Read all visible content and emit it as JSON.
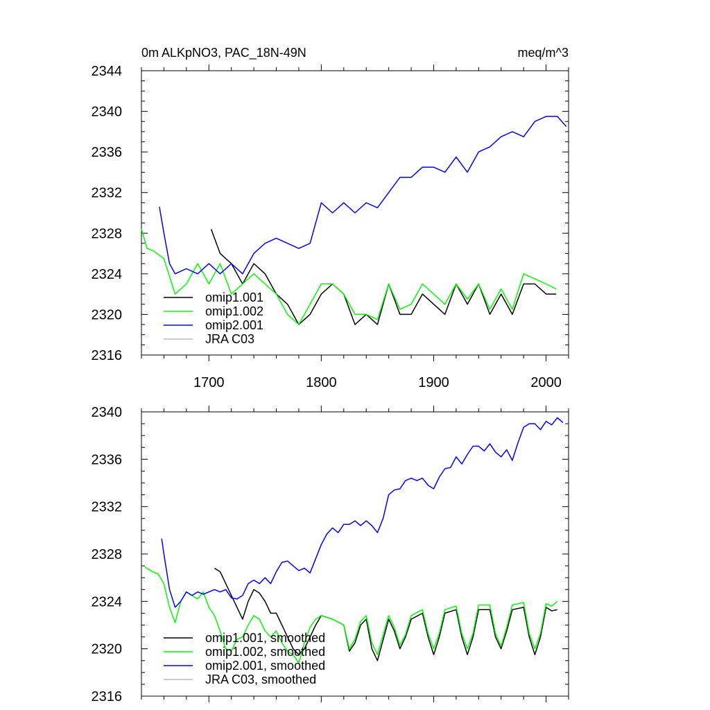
{
  "chart_data": [
    {
      "type": "line",
      "title": "0m ALKpNO3, PAC_18N-49N",
      "units": "meq/m^3",
      "xlim": [
        1640,
        2020
      ],
      "ylim": [
        2316,
        2344
      ],
      "yticks": [
        2316,
        2320,
        2324,
        2328,
        2332,
        2336,
        2340,
        2344
      ],
      "xticks": [
        1700,
        1800,
        1900,
        2000
      ],
      "show_xtick_labels": true,
      "legend": [
        "omip1.001",
        "omip1.002",
        "omip2.001",
        "JRA C03"
      ],
      "series": [
        {
          "name": "omip1.001",
          "color": "#000000",
          "x": [
            1702,
            1710,
            1720,
            1730,
            1740,
            1750,
            1760,
            1770,
            1780,
            1790,
            1800,
            1810,
            1820,
            1830,
            1840,
            1850,
            1860,
            1870,
            1880,
            1890,
            1900,
            1910,
            1920,
            1930,
            1940,
            1950,
            1960,
            1970,
            1980,
            1990,
            2000,
            2009
          ],
          "y": [
            2328.4,
            2326,
            2325,
            2323,
            2325,
            2324,
            2322,
            2321,
            2319,
            2320,
            2322,
            2323,
            2322,
            2319,
            2320,
            2319,
            2323,
            2320,
            2320,
            2322,
            2321,
            2320,
            2323,
            2321,
            2323,
            2320,
            2322,
            2320,
            2323,
            2323,
            2322,
            2322
          ]
        },
        {
          "name": "omip1.002",
          "color": "#00ff00",
          "x": [
            1640,
            1645,
            1650,
            1660,
            1670,
            1680,
            1690,
            1700,
            1710,
            1720,
            1730,
            1740,
            1750,
            1760,
            1770,
            1780,
            1790,
            1800,
            1810,
            1820,
            1830,
            1840,
            1850,
            1860,
            1870,
            1880,
            1890,
            1900,
            1910,
            1920,
            1930,
            1940,
            1950,
            1960,
            1970,
            1980,
            1990,
            2000,
            2009
          ],
          "y": [
            2328.4,
            2326.5,
            2326.3,
            2325.5,
            2322,
            2323,
            2325,
            2323,
            2325,
            2322,
            2323,
            2324,
            2323,
            2322,
            2320,
            2319,
            2321,
            2323,
            2323,
            2322,
            2320,
            2320,
            2319.5,
            2323,
            2320.5,
            2321,
            2323,
            2322,
            2321,
            2323,
            2321.5,
            2323,
            2320.5,
            2322.5,
            2320.5,
            2324,
            2323.5,
            2323,
            2322.5
          ]
        },
        {
          "name": "omip2.001",
          "color": "#0000ff",
          "x": [
            1656,
            1660,
            1665,
            1670,
            1680,
            1690,
            1700,
            1710,
            1720,
            1730,
            1740,
            1750,
            1760,
            1770,
            1780,
            1790,
            1800,
            1810,
            1820,
            1830,
            1840,
            1850,
            1860,
            1870,
            1880,
            1890,
            1900,
            1910,
            1920,
            1930,
            1940,
            1950,
            1960,
            1970,
            1980,
            1990,
            2000,
            2010,
            2018
          ],
          "y": [
            2330.6,
            2328,
            2325,
            2324,
            2324.5,
            2324,
            2325,
            2324,
            2325,
            2324,
            2326,
            2327,
            2327.5,
            2327,
            2326.5,
            2327,
            2331,
            2330,
            2331,
            2330,
            2331,
            2330.5,
            2332,
            2333.5,
            2333.5,
            2334.5,
            2334.5,
            2334,
            2335.5,
            2334,
            2336,
            2336.5,
            2337.5,
            2338,
            2337.5,
            2339,
            2339.5,
            2339.5,
            2338.5
          ]
        },
        {
          "name": "JRA C03",
          "color": "#bbbbbb",
          "x": [],
          "y": []
        }
      ]
    },
    {
      "type": "line",
      "xlim": [
        1640,
        2020
      ],
      "ylim": [
        2316,
        2340
      ],
      "yticks": [
        2316,
        2320,
        2324,
        2328,
        2332,
        2336,
        2340
      ],
      "xticks": [
        1700,
        1800,
        1900,
        2000
      ],
      "show_xtick_labels": false,
      "legend": [
        "omip1.001, smoothed",
        "omip1.002, smoothed",
        "omip2.001, smoothed",
        "JRA C03, smoothed"
      ],
      "series": [
        {
          "name": "omip1.001, smoothed",
          "color": "#000000",
          "x": [
            1705,
            1710,
            1715,
            1720,
            1725,
            1730,
            1735,
            1740,
            1745,
            1750,
            1755,
            1760,
            1765,
            1770,
            1775,
            1780,
            1785,
            1790,
            1795,
            1800,
            1810,
            1820,
            1825,
            1830,
            1835,
            1840,
            1845,
            1850,
            1860,
            1865,
            1870,
            1875,
            1880,
            1890,
            1895,
            1900,
            1905,
            1910,
            1920,
            1925,
            1930,
            1935,
            1940,
            1950,
            1955,
            1960,
            1965,
            1970,
            1980,
            1985,
            1990,
            1995,
            2000,
            2005,
            2010
          ],
          "y": [
            2326.8,
            2326.5,
            2325.5,
            2324.5,
            2323.5,
            2322.5,
            2324,
            2325,
            2324.7,
            2324,
            2323,
            2323,
            2322,
            2321,
            2320,
            2319.5,
            2320,
            2321,
            2322,
            2322.8,
            2322.5,
            2322,
            2319.8,
            2320.5,
            2322,
            2322.5,
            2320,
            2319,
            2322.5,
            2321.5,
            2320,
            2321,
            2322.5,
            2323,
            2321,
            2319.5,
            2321,
            2323,
            2323.3,
            2321,
            2319.5,
            2321,
            2323.3,
            2323.3,
            2321,
            2320,
            2321.5,
            2323.3,
            2323.5,
            2321,
            2319.5,
            2321,
            2323.5,
            2323.2,
            2323.3
          ]
        },
        {
          "name": "omip1.002, smoothed",
          "color": "#00ff00",
          "x": [
            1643,
            1650,
            1655,
            1660,
            1665,
            1670,
            1675,
            1680,
            1685,
            1690,
            1695,
            1700,
            1705,
            1710,
            1715,
            1720,
            1725,
            1730,
            1735,
            1740,
            1745,
            1750,
            1755,
            1760,
            1765,
            1770,
            1775,
            1780,
            1785,
            1790,
            1795,
            1800,
            1810,
            1820,
            1825,
            1830,
            1835,
            1840,
            1845,
            1850,
            1860,
            1865,
            1870,
            1875,
            1880,
            1890,
            1895,
            1900,
            1905,
            1910,
            1920,
            1925,
            1930,
            1935,
            1940,
            1950,
            1955,
            1960,
            1965,
            1970,
            1980,
            1985,
            1990,
            1995,
            2000,
            2005,
            2010
          ],
          "y": [
            2326.9,
            2326.5,
            2326.3,
            2325.5,
            2323.5,
            2322.2,
            2324,
            2324.8,
            2324.5,
            2324.2,
            2324.8,
            2323.5,
            2322.8,
            2321.5,
            2320,
            2319.8,
            2320.8,
            2321,
            2322,
            2322.8,
            2322.5,
            2321.5,
            2321,
            2321.5,
            2320.5,
            2319.8,
            2319.5,
            2318.8,
            2320.5,
            2321.8,
            2322.5,
            2322.8,
            2322.5,
            2322,
            2320,
            2320.8,
            2322.3,
            2322.8,
            2320.5,
            2319.5,
            2322.8,
            2321.8,
            2320.3,
            2321.2,
            2322.8,
            2323.3,
            2321.3,
            2320,
            2321.3,
            2323.3,
            2323.6,
            2321.3,
            2320,
            2321.3,
            2323.7,
            2323.7,
            2321.3,
            2320.2,
            2321.8,
            2323.7,
            2323.9,
            2321.3,
            2320,
            2321.3,
            2323.8,
            2323.6,
            2324
          ]
        },
        {
          "name": "omip2.001, smoothed",
          "color": "#0000ff",
          "x": [
            1658,
            1660,
            1665,
            1670,
            1675,
            1680,
            1685,
            1690,
            1695,
            1700,
            1705,
            1710,
            1715,
            1720,
            1725,
            1730,
            1735,
            1740,
            1745,
            1750,
            1755,
            1760,
            1765,
            1770,
            1775,
            1780,
            1785,
            1790,
            1795,
            1800,
            1805,
            1810,
            1815,
            1820,
            1825,
            1830,
            1835,
            1840,
            1845,
            1850,
            1855,
            1860,
            1865,
            1870,
            1875,
            1880,
            1885,
            1890,
            1895,
            1900,
            1905,
            1910,
            1915,
            1920,
            1925,
            1930,
            1935,
            1940,
            1945,
            1950,
            1955,
            1960,
            1965,
            1970,
            1975,
            1980,
            1985,
            1990,
            1995,
            2000,
            2005,
            2010,
            2015
          ],
          "y": [
            2329.3,
            2328,
            2325,
            2323.5,
            2324,
            2324.8,
            2324.5,
            2324.8,
            2324.6,
            2324.8,
            2325,
            2324.8,
            2325,
            2324.3,
            2324.2,
            2324.5,
            2325.5,
            2325.8,
            2325.5,
            2326,
            2325.5,
            2326.5,
            2327.3,
            2327.4,
            2327,
            2326.6,
            2326.8,
            2326.4,
            2327.6,
            2328.8,
            2329.7,
            2330.2,
            2329.8,
            2330.5,
            2330.5,
            2330.8,
            2330.4,
            2330.8,
            2330.4,
            2329.8,
            2331,
            2333,
            2333.4,
            2333.5,
            2334.2,
            2334.4,
            2334.2,
            2334.4,
            2333.8,
            2333.5,
            2334.5,
            2335.2,
            2335.3,
            2336.2,
            2335.6,
            2336.4,
            2337.1,
            2337.1,
            2336.7,
            2337.3,
            2336.6,
            2336.2,
            2336.8,
            2335.9,
            2337.4,
            2338.7,
            2339.0,
            2339.0,
            2338.5,
            2339.2,
            2338.9,
            2339.5,
            2339.1
          ]
        },
        {
          "name": "JRA C03, smoothed",
          "color": "#bbbbbb",
          "x": [],
          "y": []
        }
      ]
    }
  ]
}
